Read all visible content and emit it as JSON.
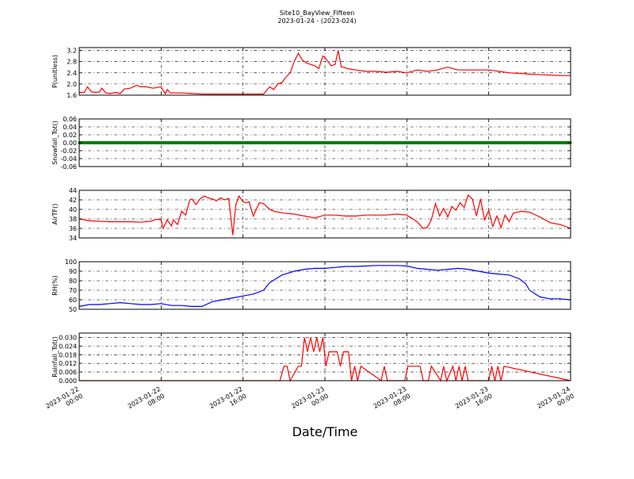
{
  "chart_data": {
    "type": "line",
    "title": "Site10_BayView_Fifteen",
    "subtitle": "2023-01-24 - (2023-024)",
    "xlabel": "Date/Time",
    "x_range": [
      "2023-01-22 00:00",
      "2023-01-24 00:00"
    ],
    "x_ticks": [
      {
        "line1": "2023-01-22",
        "line2": "00:00",
        "hours": 0
      },
      {
        "line1": "2023-01-22",
        "line2": "08:00",
        "hours": 8
      },
      {
        "line1": "2023-01-22",
        "line2": "16:00",
        "hours": 16
      },
      {
        "line1": "2023-01-23",
        "line2": "00:00",
        "hours": 24
      },
      {
        "line1": "2023-01-23",
        "line2": "08:00",
        "hours": 32
      },
      {
        "line1": "2023-01-23",
        "line2": "16:00",
        "hours": 40
      },
      {
        "line1": "2023-01-24",
        "line2": "00:00",
        "hours": 48
      }
    ],
    "grid": true,
    "panels": [
      {
        "ylabel": "P(unitless)",
        "ylim": [
          1.6,
          3.3
        ],
        "yticks": [
          "1.6",
          "2.0",
          "2.4",
          "2.8",
          "3.2"
        ],
        "ytick_values": [
          1.6,
          2.0,
          2.4,
          2.8,
          3.2
        ],
        "color": "#ff0000",
        "series": [
          {
            "x": [
              0,
              0.5,
              0.8,
              1.2,
              1.6,
              2.0,
              2.2,
              2.6,
              3.0,
              3.6,
              4.0,
              4.4,
              5.0,
              5.6,
              6.0,
              6.5,
              7.2,
              8.0,
              8.4,
              8.6,
              8.9,
              9.2,
              10,
              11,
              12,
              13,
              14,
              15,
              16,
              17,
              18,
              18.6,
              19,
              19.4,
              19.8,
              20.2,
              20.6,
              21,
              21.4,
              21.8,
              22.2,
              22.6,
              23.0,
              23.4,
              23.8,
              24,
              24.3,
              24.6,
              25,
              25.3,
              25.6,
              25.8,
              26.2,
              27,
              28,
              29,
              30,
              31,
              32,
              33,
              34,
              35,
              36,
              37,
              38,
              39,
              40,
              41,
              42,
              43,
              44,
              45,
              46,
              47,
              48
            ],
            "y": [
              1.7,
              1.7,
              1.9,
              1.72,
              1.7,
              1.72,
              1.85,
              1.68,
              1.66,
              1.7,
              1.65,
              1.82,
              1.85,
              1.95,
              1.9,
              1.9,
              1.85,
              1.9,
              1.65,
              1.8,
              1.68,
              1.68,
              1.68,
              1.66,
              1.64,
              1.64,
              1.64,
              1.64,
              1.64,
              1.64,
              1.64,
              1.9,
              1.8,
              2.0,
              2.05,
              2.25,
              2.4,
              2.8,
              3.1,
              2.85,
              2.75,
              2.7,
              2.65,
              2.55,
              3.0,
              2.95,
              2.8,
              2.65,
              2.7,
              3.2,
              2.6,
              2.6,
              2.55,
              2.5,
              2.45,
              2.45,
              2.42,
              2.45,
              2.4,
              2.5,
              2.45,
              2.5,
              2.6,
              2.5,
              2.5,
              2.5,
              2.5,
              2.45,
              2.4,
              2.38,
              2.35,
              2.33,
              2.32,
              2.3,
              2.3
            ]
          }
        ]
      },
      {
        "ylabel": "Snowfall_Tot()",
        "ylim": [
          -0.06,
          0.06
        ],
        "yticks": [
          "-0.06",
          "-0.04",
          "-0.02",
          "0.00",
          "0.02",
          "0.04",
          "0.06"
        ],
        "ytick_values": [
          -0.06,
          -0.04,
          -0.02,
          0,
          0.02,
          0.04,
          0.06
        ],
        "color": "#008000",
        "marker": "dot",
        "series": [
          {
            "x": [
              0,
              48
            ],
            "y": [
              0,
              0
            ]
          }
        ]
      },
      {
        "ylabel": "AirTF()",
        "ylim": [
          34,
          44
        ],
        "yticks": [
          "34",
          "36",
          "38",
          "40",
          "42",
          "44"
        ],
        "ytick_values": [
          34,
          36,
          38,
          40,
          42,
          44
        ],
        "color": "#ff0000",
        "series": [
          {
            "x": [
              0,
              1,
              2,
              3,
              4,
              5,
              6,
              7,
              7.5,
              8,
              8.2,
              8.6,
              9,
              9.2,
              9.6,
              10,
              10.4,
              10.8,
              11.0,
              11.4,
              11.8,
              12.2,
              12.6,
              13,
              13.4,
              13.8,
              14.2,
              14.6,
              15,
              15.3,
              15.6,
              16,
              16.3,
              16.6,
              17,
              17.6,
              18,
              18.6,
              19,
              20,
              21,
              22,
              23,
              24,
              25,
              26,
              27,
              28,
              29,
              30,
              31,
              32,
              33,
              33.6,
              34,
              34.4,
              34.8,
              35.2,
              35.6,
              36,
              36.4,
              36.8,
              37.2,
              37.6,
              38,
              38.4,
              38.8,
              39.2,
              39.6,
              40,
              40.4,
              40.8,
              41.2,
              41.6,
              42,
              42.4,
              42.8,
              43.2,
              44,
              45,
              46,
              47,
              48
            ],
            "y": [
              38,
              37.6,
              37.5,
              37.4,
              37.4,
              37.4,
              37.3,
              37.5,
              37.9,
              37.8,
              36,
              37.8,
              36.5,
              37.8,
              36.8,
              39.6,
              38.8,
              42,
              42.2,
              41,
              42.2,
              42.8,
              42.4,
              42.2,
              41.8,
              42.4,
              42.0,
              42.3,
              34.6,
              41,
              42.8,
              41.6,
              41.4,
              41.6,
              38.6,
              41.4,
              41.2,
              40,
              39.6,
              39.2,
              39,
              38.6,
              38.2,
              38.8,
              38.8,
              38.6,
              38.6,
              38.8,
              38.8,
              38.8,
              39,
              38.8,
              37.4,
              36,
              36.2,
              37.8,
              41.2,
              38.6,
              40.2,
              38.4,
              40.6,
              39.8,
              41.4,
              40.4,
              43,
              42.2,
              38.6,
              42.2,
              37.8,
              39.8,
              36.4,
              38.6,
              36.2,
              38.8,
              37.4,
              39.2,
              39.4,
              39.6,
              39.4,
              38.4,
              37.2,
              36.8,
              36
            ]
          }
        ]
      },
      {
        "ylabel": "RH(%)",
        "ylim": [
          50,
          100
        ],
        "yticks": [
          "50",
          "60",
          "70",
          "80",
          "90",
          "100"
        ],
        "ytick_values": [
          50,
          60,
          70,
          80,
          90,
          100
        ],
        "color": "#0000ff",
        "series": [
          {
            "x": [
              0,
              1,
              2,
              3,
              4,
              5,
              6,
              7,
              8,
              9,
              10,
              11,
              12,
              13,
              14,
              15,
              16,
              17,
              18,
              18.6,
              19.2,
              19.8,
              20.4,
              21,
              22,
              23,
              24,
              25,
              26,
              27,
              28,
              29,
              30,
              31,
              32,
              33,
              34,
              35,
              36,
              37,
              38,
              39,
              40,
              41,
              42,
              43,
              43.6,
              44,
              45,
              46,
              47,
              48
            ],
            "y": [
              53,
              55,
              55,
              56,
              57,
              56,
              55,
              55,
              56,
              54,
              54,
              53,
              53,
              58,
              60,
              62,
              64,
              66,
              70,
              78,
              82,
              86,
              88,
              90,
              92,
              93,
              93,
              94,
              95,
              95,
              95.5,
              96,
              96,
              96,
              95.5,
              93,
              92,
              91,
              92,
              93,
              92,
              90,
              88,
              87,
              86,
              82,
              77,
              70,
              63,
              61,
              61,
              60
            ]
          }
        ]
      },
      {
        "ylabel": "Rainfall_Tot()",
        "ylim": [
          0,
          0.033
        ],
        "yticks": [
          "0.000",
          "0.006",
          "0.012",
          "0.018",
          "0.024",
          "0.030"
        ],
        "ytick_values": [
          0,
          0.006,
          0.012,
          0.018,
          0.024,
          0.03
        ],
        "color": "#ff0000",
        "series": [
          {
            "x": [
              0,
              19.6,
              20,
              20.3,
              20.6,
              21.4,
              21.7,
              22,
              22.3,
              22.6,
              22.9,
              23.2,
              23.5,
              23.8,
              24.1,
              24.4,
              25.2,
              25.5,
              25.8,
              26.3,
              26.6,
              26.9,
              27.2,
              27.5,
              29.5,
              29.8,
              30.1,
              31.8,
              32.1,
              33.3,
              33.6,
              34.1,
              34.4,
              35.3,
              35.6,
              35.9,
              36.5,
              36.8,
              37.1,
              37.4,
              37.7,
              38.0,
              38.3,
              40,
              40.3,
              40.6,
              40.9,
              41.2,
              41.5,
              48
            ],
            "y": [
              0,
              0,
              0.01,
              0.01,
              0,
              0.01,
              0.01,
              0.03,
              0.02,
              0.03,
              0.02,
              0.03,
              0.02,
              0.03,
              0.01,
              0.02,
              0.02,
              0.01,
              0.02,
              0.02,
              0,
              0.01,
              0,
              0.01,
              0,
              0.01,
              0,
              0,
              0.01,
              0.01,
              0,
              0,
              0.01,
              0,
              0.01,
              0,
              0.01,
              0,
              0.01,
              0,
              0.01,
              0,
              0,
              0,
              0.01,
              0,
              0.01,
              0,
              0.01,
              0
            ]
          }
        ]
      }
    ]
  }
}
